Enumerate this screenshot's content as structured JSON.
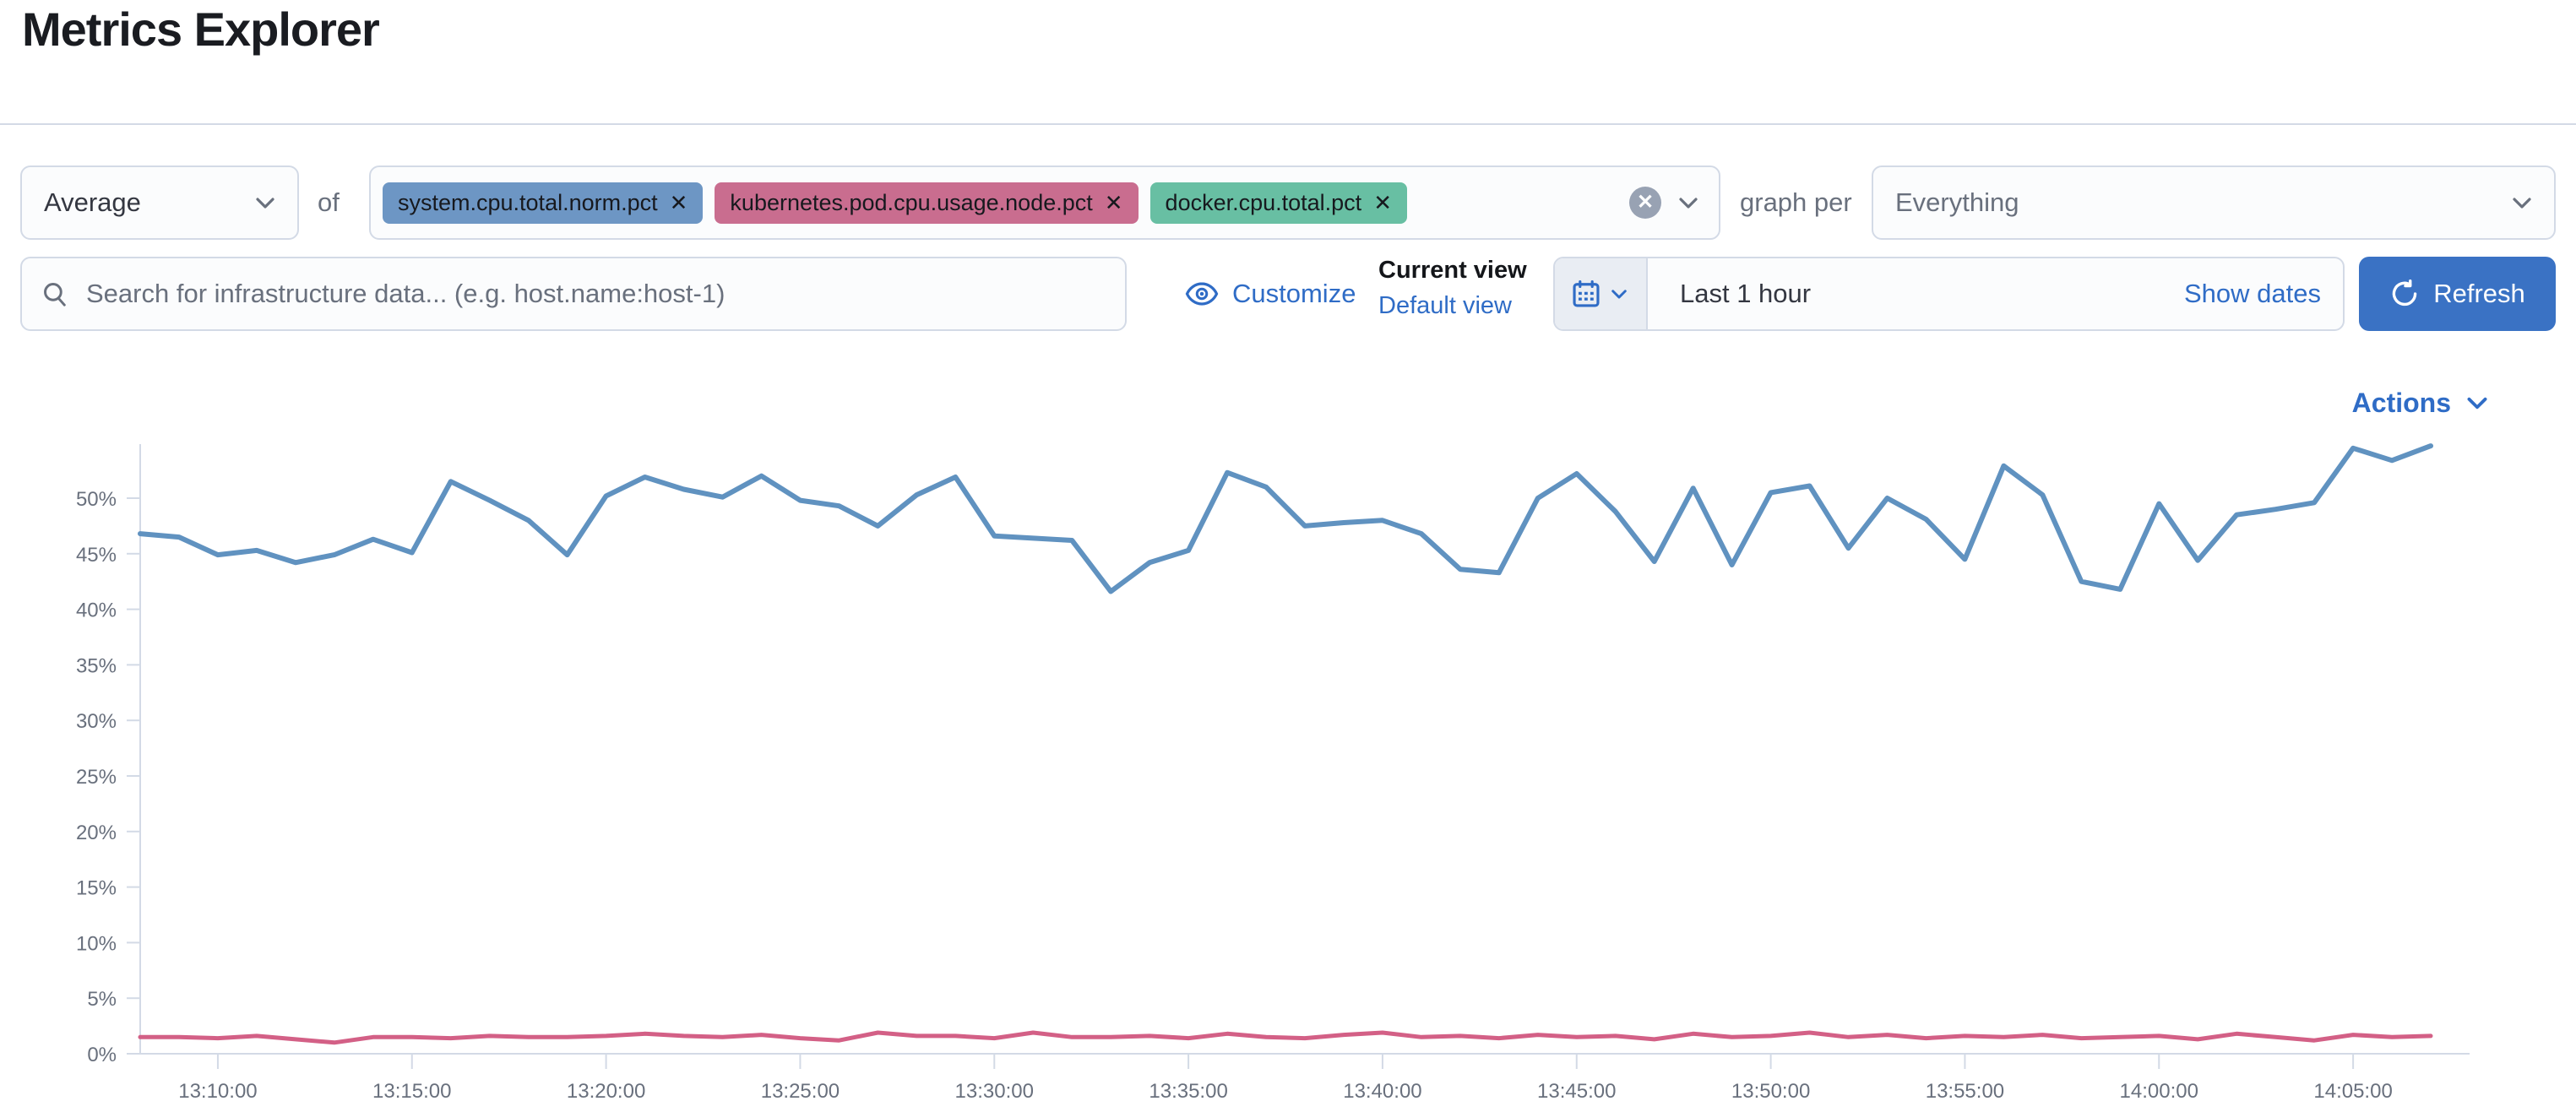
{
  "page": {
    "title": "Metrics Explorer"
  },
  "aggregation": {
    "selected": "Average",
    "of_label": "of",
    "metrics": [
      {
        "label": "system.cpu.total.norm.pct",
        "color": "#6d96c4"
      },
      {
        "label": "kubernetes.pod.cpu.usage.node.pct",
        "color": "#c96d8f"
      },
      {
        "label": "docker.cpu.total.pct",
        "color": "#68bfa3"
      }
    ],
    "graph_per_label": "graph per",
    "graph_per_selected": "Everything"
  },
  "toolbar": {
    "search_placeholder": "Search for infrastructure data... (e.g. host.name:host-1)",
    "customize_label": "Customize",
    "current_view_label": "Current view",
    "default_view_label": "Default view",
    "time_range": "Last 1 hour",
    "show_dates_label": "Show dates",
    "refresh_label": "Refresh"
  },
  "actions": {
    "label": "Actions"
  },
  "colors": {
    "link_blue": "#2f6cc6",
    "primary_button": "#3a72c4",
    "border": "#d3dae6",
    "muted_text": "#69707d",
    "axis_text": "#69707d"
  },
  "chart_data": {
    "type": "line",
    "title": "",
    "xlabel": "",
    "ylabel": "",
    "grid": false,
    "legend": "none",
    "x_domain": [
      "13:08:00",
      "14:08:00"
    ],
    "x_ticks": [
      "13:10:00",
      "13:15:00",
      "13:20:00",
      "13:25:00",
      "13:30:00",
      "13:35:00",
      "13:40:00",
      "13:45:00",
      "13:50:00",
      "13:55:00",
      "14:00:00",
      "14:05:00"
    ],
    "y_tick_values": [
      0,
      5,
      10,
      15,
      20,
      25,
      30,
      35,
      40,
      45,
      50
    ],
    "y_tick_suffix": "%",
    "ylim": [
      0,
      55.5
    ],
    "series": [
      {
        "name": "avg of system.cpu.total.norm.pct",
        "color": "#6092C0",
        "start": "13:08:00",
        "step_seconds": 60,
        "values": [
          46.8,
          46.5,
          44.9,
          45.3,
          44.2,
          44.9,
          46.3,
          45.1,
          51.5,
          49.8,
          48.0,
          44.9,
          50.2,
          51.9,
          50.8,
          50.1,
          52.0,
          49.8,
          49.3,
          47.5,
          50.3,
          51.9,
          46.6,
          46.4,
          46.2,
          41.6,
          44.2,
          45.3,
          52.3,
          51.0,
          47.5,
          47.8,
          48.0,
          46.8,
          43.6,
          43.3,
          50.0,
          52.2,
          48.8,
          44.3,
          50.9,
          44.0,
          50.5,
          51.1,
          45.5,
          50.0,
          48.1,
          44.5,
          52.9,
          50.3,
          42.5,
          41.8,
          49.5,
          44.4,
          48.5,
          49.0,
          49.6,
          54.5,
          53.4,
          54.7
        ]
      },
      {
        "name": "avg of kubernetes.pod.cpu.usage.node.pct",
        "color": "#D36086",
        "start": "13:08:00",
        "step_seconds": 60,
        "values": [
          1.5,
          1.5,
          1.4,
          1.6,
          1.3,
          1.0,
          1.5,
          1.5,
          1.4,
          1.6,
          1.5,
          1.5,
          1.6,
          1.8,
          1.6,
          1.5,
          1.7,
          1.4,
          1.2,
          1.9,
          1.6,
          1.6,
          1.4,
          1.9,
          1.5,
          1.5,
          1.6,
          1.4,
          1.8,
          1.5,
          1.4,
          1.7,
          1.9,
          1.5,
          1.6,
          1.4,
          1.7,
          1.5,
          1.6,
          1.3,
          1.8,
          1.5,
          1.6,
          1.9,
          1.5,
          1.7,
          1.4,
          1.6,
          1.5,
          1.7,
          1.4,
          1.5,
          1.6,
          1.3,
          1.8,
          1.5,
          1.2,
          1.7,
          1.5,
          1.6
        ]
      }
    ]
  }
}
